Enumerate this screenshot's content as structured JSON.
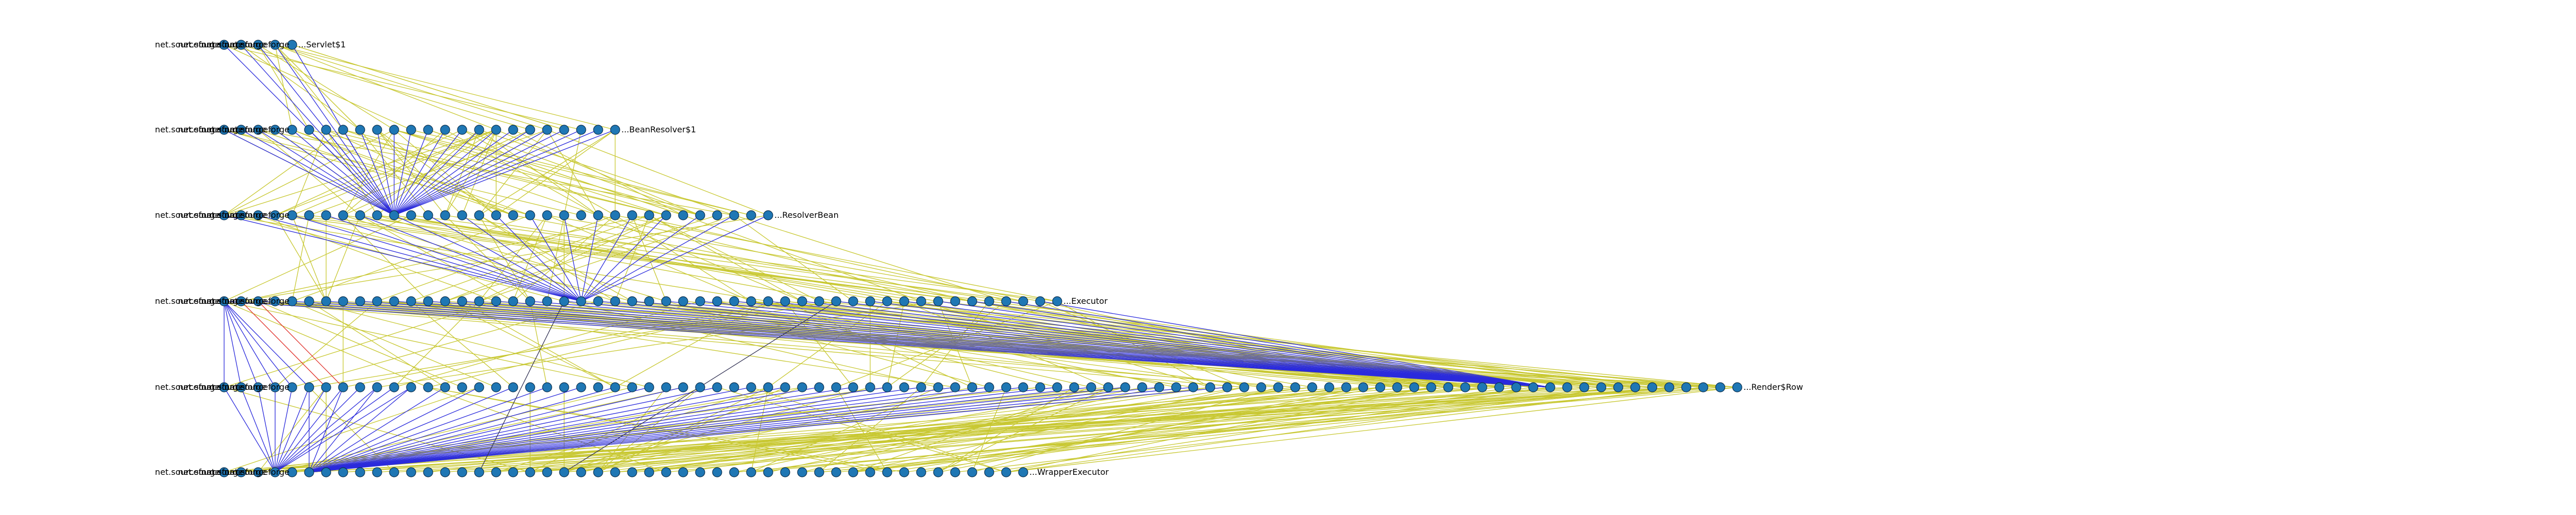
{
  "diagram": {
    "type": "layered-dependency-graph",
    "colors": {
      "node_fill": "#1f77b4",
      "edge_blue": "#2b2bdc",
      "edge_yellow": "#c8c832",
      "edge_red": "#e0302a",
      "edge_dark": "#333355",
      "background": "#ffffff"
    },
    "layers": [
      {
        "node_count": 5,
        "labels": [
          "net.sourceforge",
          "net.sourceforge",
          "net.sourceforge",
          "net.sourceforge",
          "net.sourceforge.pmd.servlet.Servlet$1"
        ],
        "last_label": "...Servlet$1"
      },
      {
        "node_count": 24,
        "labels": [
          "net.sourceforge",
          "net.sourceforge",
          "net.sourceforge",
          "net.sourceforge",
          "net.sourceforge.pmd.BeanResolver$1"
        ],
        "last_label": "...BeanResolver$1"
      },
      {
        "node_count": 33,
        "labels": [
          "net.sourceforge",
          "net.sourceforge",
          "net.sourceforge",
          "net.sourceforge",
          "net.sourceforge.pmd.ResolverBean"
        ],
        "last_label": "...ResolverBean"
      },
      {
        "node_count": 50,
        "labels": [
          "net.sourceforge",
          "net.sourceforge",
          "net.sourceforge",
          "net.sourceforge",
          "net.sourceforge.pmd.Executor"
        ],
        "last_label": "...Executor"
      },
      {
        "node_count": 90,
        "labels": [
          "net.sourceforge",
          "net.sourceforge",
          "net.sourceforge",
          "net.sourceforge",
          "net.sourceforge.pmd.Render$Row"
        ],
        "last_label": "...Render$Row"
      },
      {
        "node_count": 48,
        "labels": [
          "net.sourceforge",
          "net.sourceforge",
          "net.sourceforge",
          "net.sourceforge",
          "net.sourceforge.pmd.WrapperExecutor"
        ],
        "last_label": "...WrapperExecutor"
      }
    ]
  }
}
